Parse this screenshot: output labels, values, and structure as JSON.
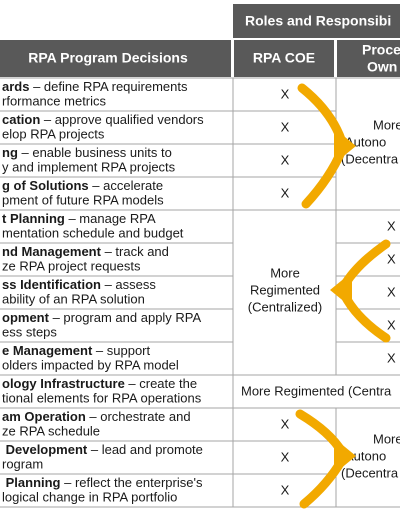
{
  "header": {
    "group": "Roles and Responsibi",
    "decisions": "RPA Program Decisions",
    "coe": "RPA COE",
    "owners": [
      "Proce",
      "Own"
    ]
  },
  "rows": [
    {
      "term": "ards",
      "line1": " – define RPA requirements",
      "line2": "rformance metrics"
    },
    {
      "term": "cation",
      "line1": " – approve qualified vendors",
      "line2": "elop RPA projects"
    },
    {
      "term": "ng",
      "line1": " – enable business units to",
      "line2": "y and implement RPA projects"
    },
    {
      "term": "g of Solutions",
      "line1": " – accelerate",
      "line2": "pment of future RPA models"
    },
    {
      "term": "t Planning",
      "line1": " – manage RPA",
      "line2": "mentation schedule and budget"
    },
    {
      "term": "nd Management",
      "line1": " – track and",
      "line2": "ze RPA project requests"
    },
    {
      "term": "ss Identification",
      "line1": " – assess",
      "line2": "ability of an RPA solution"
    },
    {
      "term": "opment",
      "line1": " – program and apply RPA",
      "line2": "ess steps"
    },
    {
      "term": "e Management",
      "line1": " – support",
      "line2": "olders impacted by RPA model"
    },
    {
      "term": "ology Infrastructure",
      "line1": " – create the",
      "line2": "tional elements for RPA operations"
    },
    {
      "term": "am Operation",
      "line1": " – orchestrate and",
      "line2": "ze RPA schedule"
    },
    {
      "term": " Development",
      "line1": " – lead and promote",
      "line2": "rogram"
    },
    {
      "term": " Planning",
      "line1": " – reflect the enterprise's",
      "line2": "logical change in RPA portfolio"
    }
  ],
  "coe": [
    "X",
    "X",
    "X",
    "X",
    null,
    null,
    null,
    null,
    null,
    null,
    "X",
    "X",
    "X"
  ],
  "owners": [
    null,
    null,
    null,
    null,
    "X",
    "X",
    "X",
    "X",
    "X",
    null,
    null,
    null,
    null
  ],
  "coe_merged": [
    "More",
    "Regimented",
    "(Centralized)"
  ],
  "shared_merged": "More Regimented (Centra",
  "owners_merged_top": [
    "More",
    "Autono",
    "(Decentra"
  ],
  "owners_merged_bottom": [
    "More",
    "Autono",
    "(Decentra"
  ]
}
